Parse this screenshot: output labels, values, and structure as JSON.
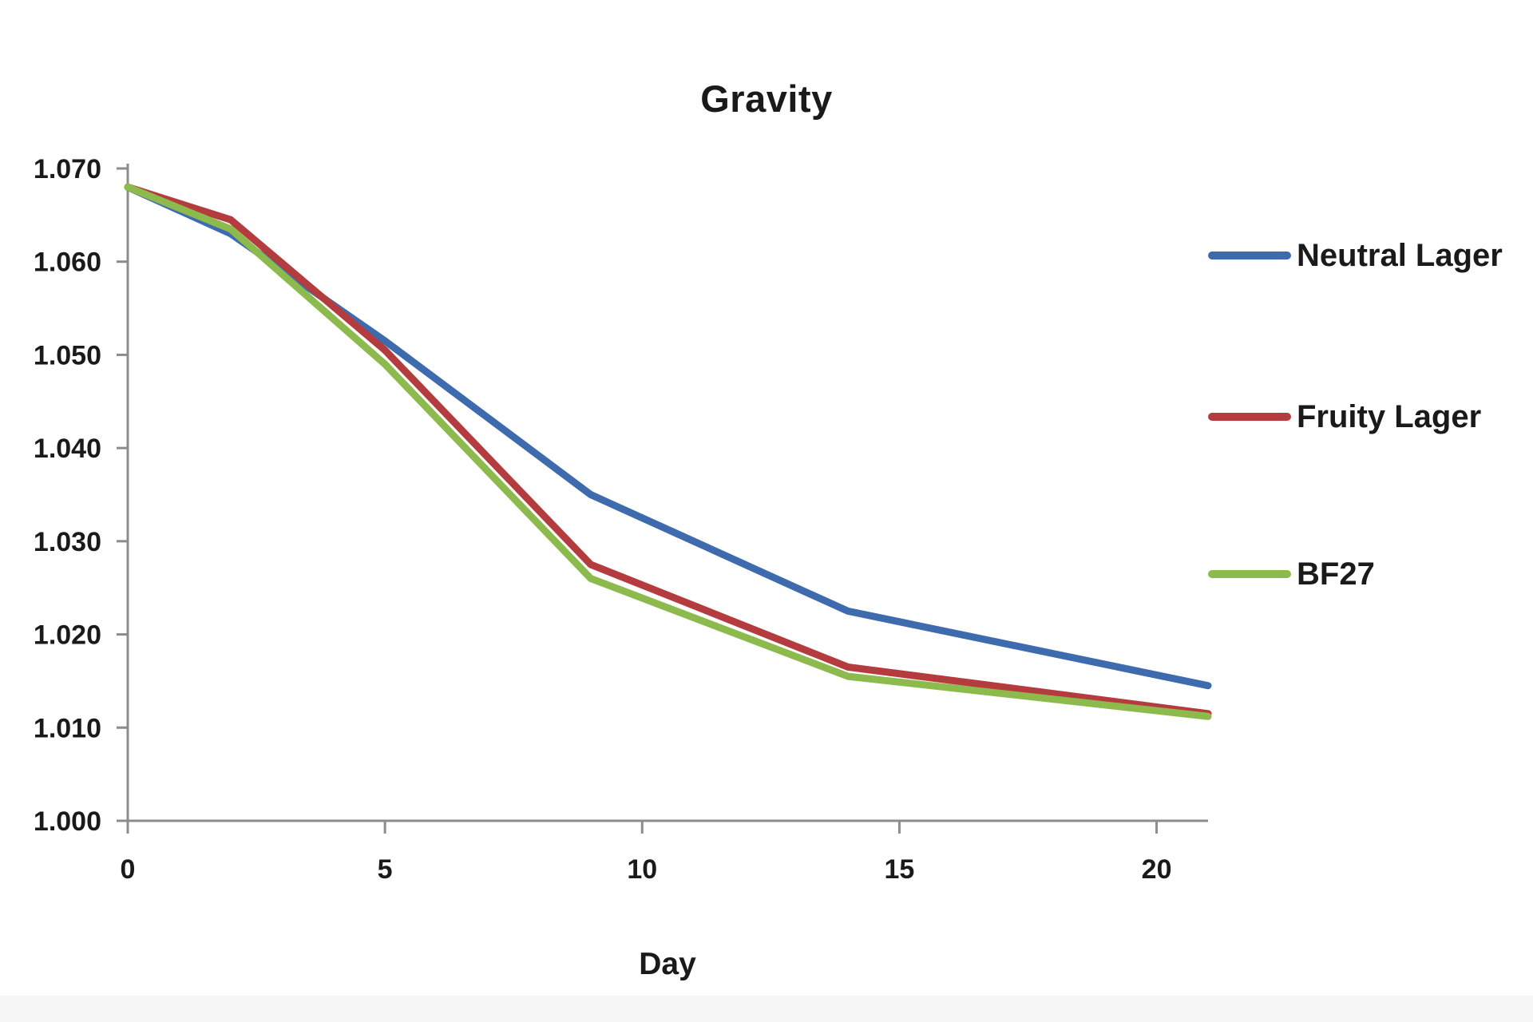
{
  "page": {
    "background": "#ffffff"
  },
  "chart_data": {
    "type": "line",
    "title": "Gravity",
    "xlabel": "Day",
    "ylabel": "",
    "x": [
      0,
      2,
      5,
      9,
      14,
      21
    ],
    "series": [
      {
        "name": "Neutral Lager",
        "color": "#3E6BAE",
        "values": [
          1.068,
          1.063,
          1.0515,
          1.035,
          1.0225,
          1.0145
        ]
      },
      {
        "name": "Fruity Lager",
        "color": "#B43B3E",
        "values": [
          1.068,
          1.0645,
          1.0505,
          1.0275,
          1.0165,
          1.0115
        ]
      },
      {
        "name": "BF27",
        "color": "#8DBA4D",
        "values": [
          1.068,
          1.0635,
          1.049,
          1.026,
          1.0155,
          1.0112
        ]
      }
    ],
    "xlim": [
      0,
      21
    ],
    "ylim": [
      1.0,
      1.07
    ],
    "x_ticks": [
      "0",
      "5",
      "10",
      "15",
      "20"
    ],
    "y_ticks": [
      "1.000",
      "1.010",
      "1.020",
      "1.030",
      "1.040",
      "1.050",
      "1.060",
      "1.070"
    ],
    "grid": false,
    "legend_position": "right"
  },
  "colors": {
    "axis": "#8C8C8C",
    "text": "#1A1A1A"
  }
}
